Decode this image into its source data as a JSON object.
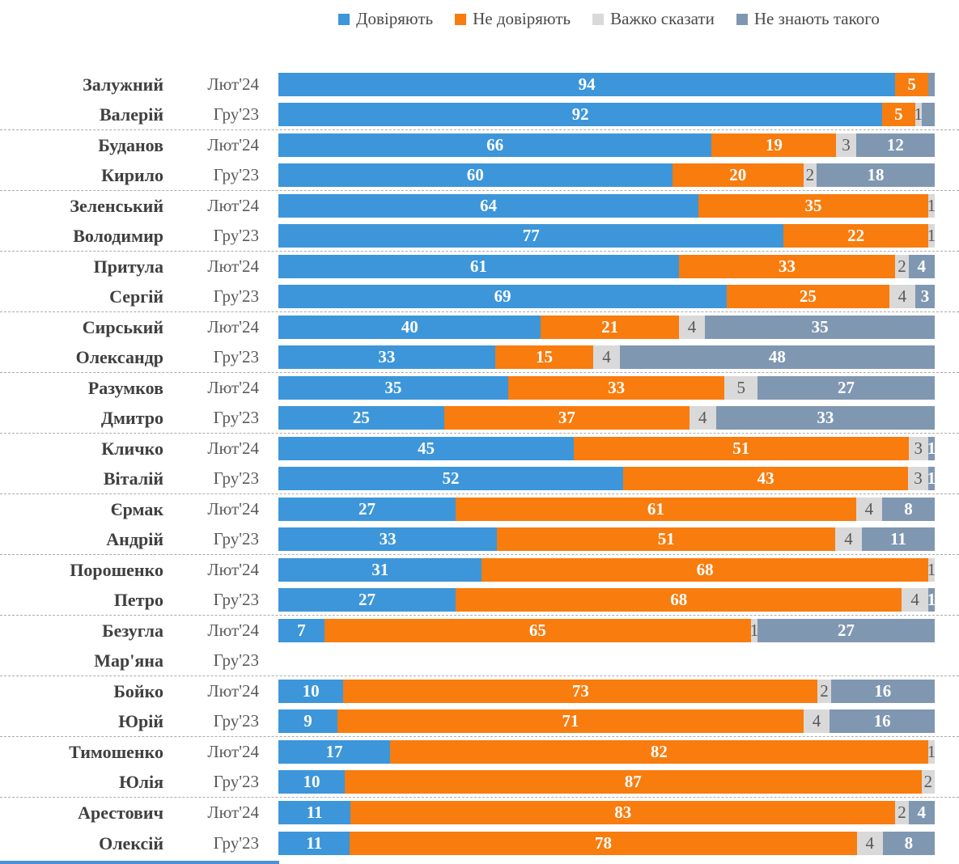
{
  "chart_data": {
    "type": "bar",
    "stacked": true,
    "orientation": "horizontal",
    "unit": "percent",
    "xlim": [
      0,
      100
    ],
    "grid": false,
    "legend_position": "top",
    "legend": [
      "Довіряють",
      "Не довіряють",
      "Важко сказати",
      "Не знають такого"
    ],
    "legend_colors": [
      "#3d96d9",
      "#f87c0e",
      "#d9d9d9",
      "#8097b1"
    ],
    "series_keys": [
      "trust",
      "distrust",
      "hard",
      "unknown"
    ],
    "period_labels": [
      "Лют'24",
      "Гру'23"
    ],
    "accent_line_color": "#4a90d9",
    "groups": [
      {
        "surname": "Залужний",
        "firstname": "Валерій",
        "rows": [
          {
            "period": "Лют'24",
            "values": [
              94,
              5,
              0,
              1
            ],
            "labels": [
              "94",
              "5",
              "",
              ""
            ]
          },
          {
            "period": "Гру'23",
            "values": [
              92,
              5,
              1,
              2
            ],
            "labels": [
              "92",
              "5",
              "1",
              ""
            ]
          }
        ]
      },
      {
        "surname": "Буданов",
        "firstname": "Кирило",
        "rows": [
          {
            "period": "Лют'24",
            "values": [
              66,
              19,
              3,
              12
            ],
            "labels": [
              "66",
              "19",
              "3",
              "12"
            ]
          },
          {
            "period": "Гру'23",
            "values": [
              60,
              20,
              2,
              18
            ],
            "labels": [
              "60",
              "20",
              "2",
              "18"
            ]
          }
        ]
      },
      {
        "surname": "Зеленський",
        "firstname": "Володимир",
        "rows": [
          {
            "period": "Лют'24",
            "values": [
              64,
              35,
              1,
              0
            ],
            "labels": [
              "64",
              "35",
              "1",
              ""
            ]
          },
          {
            "period": "Гру'23",
            "values": [
              77,
              22,
              1,
              0
            ],
            "labels": [
              "77",
              "22",
              "1",
              ""
            ]
          }
        ]
      },
      {
        "surname": "Притула",
        "firstname": "Сергій",
        "rows": [
          {
            "period": "Лют'24",
            "values": [
              61,
              33,
              2,
              4
            ],
            "labels": [
              "61",
              "33",
              "2",
              "4"
            ]
          },
          {
            "period": "Гру'23",
            "values": [
              69,
              25,
              4,
              3
            ],
            "labels": [
              "69",
              "25",
              "4",
              "3"
            ]
          }
        ]
      },
      {
        "surname": "Сирський",
        "firstname": "Олександр",
        "rows": [
          {
            "period": "Лют'24",
            "values": [
              40,
              21,
              4,
              35
            ],
            "labels": [
              "40",
              "21",
              "4",
              "35"
            ]
          },
          {
            "period": "Гру'23",
            "values": [
              33,
              15,
              4,
              48
            ],
            "labels": [
              "33",
              "15",
              "4",
              "48"
            ]
          }
        ]
      },
      {
        "surname": "Разумков",
        "firstname": "Дмитро",
        "rows": [
          {
            "period": "Лют'24",
            "values": [
              35,
              33,
              5,
              27
            ],
            "labels": [
              "35",
              "33",
              "5",
              "27"
            ]
          },
          {
            "period": "Гру'23",
            "values": [
              25,
              37,
              4,
              33
            ],
            "labels": [
              "25",
              "37",
              "4",
              "33"
            ]
          }
        ]
      },
      {
        "surname": "Кличко",
        "firstname": "Віталій",
        "rows": [
          {
            "period": "Лют'24",
            "values": [
              45,
              51,
              3,
              1
            ],
            "labels": [
              "45",
              "51",
              "3",
              "1"
            ]
          },
          {
            "period": "Гру'23",
            "values": [
              52,
              43,
              3,
              1
            ],
            "labels": [
              "52",
              "43",
              "3",
              "1"
            ]
          }
        ]
      },
      {
        "surname": "Єрмак",
        "firstname": "Андрій",
        "rows": [
          {
            "period": "Лют'24",
            "values": [
              27,
              61,
              4,
              8
            ],
            "labels": [
              "27",
              "61",
              "4",
              "8"
            ]
          },
          {
            "period": "Гру'23",
            "values": [
              33,
              51,
              4,
              11
            ],
            "labels": [
              "33",
              "51",
              "4",
              "11"
            ]
          }
        ]
      },
      {
        "surname": "Порошенко",
        "firstname": "Петро",
        "rows": [
          {
            "period": "Лют'24",
            "values": [
              31,
              68,
              1,
              0
            ],
            "labels": [
              "31",
              "68",
              "1",
              ""
            ]
          },
          {
            "period": "Гру'23",
            "values": [
              27,
              68,
              4,
              1
            ],
            "labels": [
              "27",
              "68",
              "4",
              "1"
            ]
          }
        ]
      },
      {
        "surname": "Безугла",
        "firstname": "Мар'яна",
        "rows": [
          {
            "period": "Лют'24",
            "values": [
              7,
              65,
              1,
              27
            ],
            "labels": [
              "7",
              "65",
              "1",
              "27"
            ]
          },
          {
            "period": "Гру'23",
            "values": [
              0,
              0,
              0,
              0
            ],
            "labels": [
              "",
              "",
              "",
              ""
            ]
          }
        ]
      },
      {
        "surname": "Бойко",
        "firstname": "Юрій",
        "rows": [
          {
            "period": "Лют'24",
            "values": [
              10,
              73,
              2,
              16
            ],
            "labels": [
              "10",
              "73",
              "2",
              "16"
            ]
          },
          {
            "period": "Гру'23",
            "values": [
              9,
              71,
              4,
              16
            ],
            "labels": [
              "9",
              "71",
              "4",
              "16"
            ]
          }
        ]
      },
      {
        "surname": "Тимошенко",
        "firstname": "Юлія",
        "rows": [
          {
            "period": "Лют'24",
            "values": [
              17,
              82,
              1,
              0
            ],
            "labels": [
              "17",
              "82",
              "1",
              ""
            ]
          },
          {
            "period": "Гру'23",
            "values": [
              10,
              87,
              2,
              0
            ],
            "labels": [
              "10",
              "87",
              "2",
              ""
            ]
          }
        ]
      },
      {
        "surname": "Арестович",
        "firstname": "Олексій",
        "rows": [
          {
            "period": "Лют'24",
            "values": [
              11,
              83,
              2,
              4
            ],
            "labels": [
              "11",
              "83",
              "2",
              "4"
            ]
          },
          {
            "period": "Гру'23",
            "values": [
              11,
              78,
              4,
              8
            ],
            "labels": [
              "11",
              "78",
              "4",
              "8"
            ]
          }
        ]
      }
    ]
  }
}
